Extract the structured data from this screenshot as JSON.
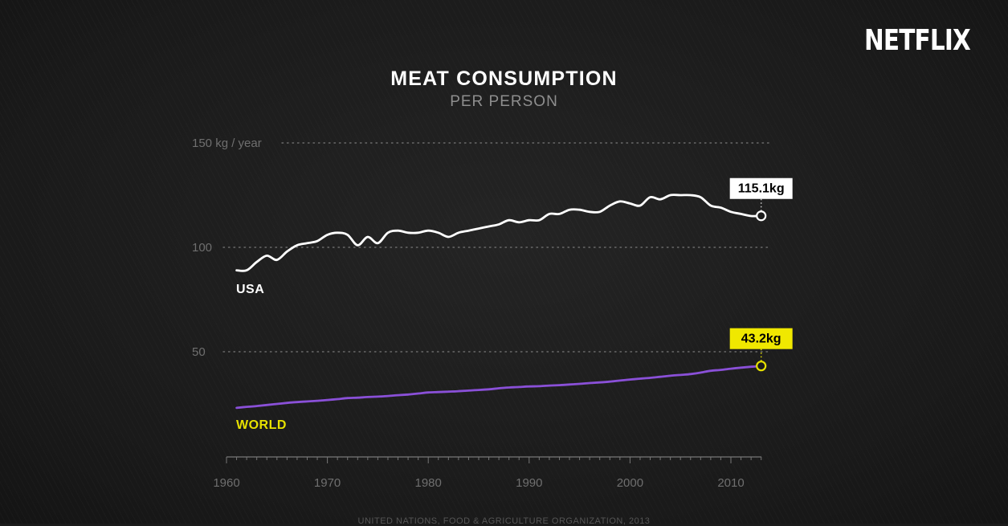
{
  "brand": {
    "logo": "NETFLIX"
  },
  "source": "UNITED NATIONS, FOOD & AGRICULTURE ORGANIZATION, 2013",
  "chart_data": {
    "type": "line",
    "title": "MEAT CONSUMPTION",
    "subtitle": "PER PERSON",
    "ylabel": "",
    "xlabel": "",
    "xlim": [
      1960,
      2013
    ],
    "ylim": [
      0,
      150
    ],
    "x_ticks": [
      1960,
      1970,
      1980,
      1990,
      2000,
      2010
    ],
    "y_ticks": [
      {
        "value": 150,
        "label": "150 kg / year"
      },
      {
        "value": 100,
        "label": "100"
      },
      {
        "value": 50,
        "label": "50"
      }
    ],
    "grid": "horizontal dotted",
    "series": [
      {
        "name": "USA",
        "color": "#ffffff",
        "end_label": "115.1kg",
        "x": [
          1961,
          1962,
          1963,
          1964,
          1965,
          1966,
          1967,
          1968,
          1969,
          1970,
          1971,
          1972,
          1973,
          1974,
          1975,
          1976,
          1977,
          1978,
          1979,
          1980,
          1981,
          1982,
          1983,
          1984,
          1985,
          1986,
          1987,
          1988,
          1989,
          1990,
          1991,
          1992,
          1993,
          1994,
          1995,
          1996,
          1997,
          1998,
          1999,
          2000,
          2001,
          2002,
          2003,
          2004,
          2005,
          2006,
          2007,
          2008,
          2009,
          2010,
          2011,
          2012,
          2013
        ],
        "values": [
          89,
          89,
          93,
          96,
          94,
          98,
          101,
          102,
          103,
          106,
          107,
          106,
          101,
          105,
          102,
          107,
          108,
          107,
          107,
          108,
          107,
          105,
          107,
          108,
          109,
          110,
          111,
          113,
          112,
          113,
          113,
          116,
          116,
          118,
          118,
          117,
          117,
          120,
          122,
          121,
          120,
          124,
          123,
          125,
          125,
          125,
          124,
          120,
          119,
          117,
          116,
          115,
          115.1
        ]
      },
      {
        "name": "WORLD",
        "color": "#8a50d8",
        "label_color": "#e7e100",
        "end_label": "43.2kg",
        "x": [
          1961,
          1962,
          1963,
          1964,
          1965,
          1966,
          1967,
          1968,
          1969,
          1970,
          1971,
          1972,
          1973,
          1974,
          1975,
          1976,
          1977,
          1978,
          1979,
          1980,
          1981,
          1982,
          1983,
          1984,
          1985,
          1986,
          1987,
          1988,
          1989,
          1990,
          1991,
          1992,
          1993,
          1994,
          1995,
          1996,
          1997,
          1998,
          1999,
          2000,
          2001,
          2002,
          2003,
          2004,
          2005,
          2006,
          2007,
          2008,
          2009,
          2010,
          2011,
          2012,
          2013
        ],
        "values": [
          23.1,
          23.6,
          24.0,
          24.5,
          25.0,
          25.5,
          25.9,
          26.2,
          26.5,
          26.9,
          27.3,
          27.8,
          28.0,
          28.3,
          28.5,
          28.8,
          29.2,
          29.5,
          30.0,
          30.5,
          30.7,
          30.9,
          31.1,
          31.4,
          31.7,
          32.0,
          32.5,
          32.9,
          33.1,
          33.4,
          33.5,
          33.8,
          34.0,
          34.3,
          34.6,
          35.0,
          35.3,
          35.7,
          36.2,
          36.7,
          37.1,
          37.5,
          38.0,
          38.5,
          38.9,
          39.3,
          40.0,
          40.9,
          41.3,
          41.9,
          42.4,
          42.8,
          43.2
        ]
      }
    ]
  }
}
